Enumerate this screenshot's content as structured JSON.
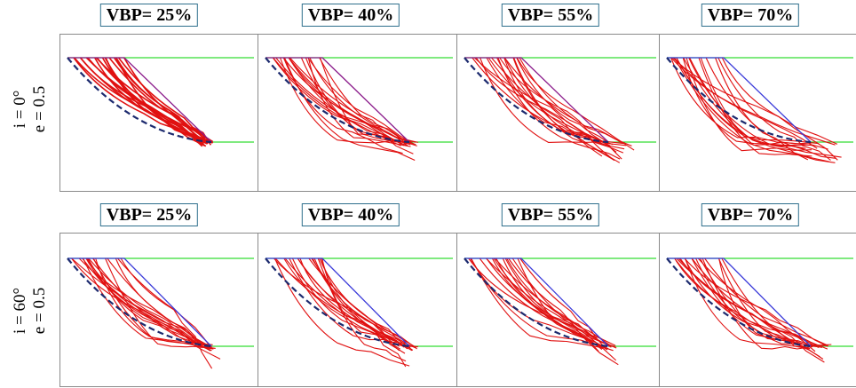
{
  "rows": [
    {
      "label_line1": "i = 0°",
      "label_line2": "e = 0.5",
      "panels": [
        {
          "title": "VBP= 25%",
          "spread": 0.35,
          "escape": 0.0,
          "boundary_color": "#8a1a8a",
          "seed": 11
        },
        {
          "title": "VBP= 40%",
          "spread": 0.55,
          "escape": 0.25,
          "boundary_color": "#8a1a8a",
          "seed": 23
        },
        {
          "title": "VBP= 55%",
          "spread": 0.85,
          "escape": 0.55,
          "boundary_color": "#8a1a8a",
          "seed": 37
        },
        {
          "title": "VBP= 70%",
          "spread": 1.0,
          "escape": 0.75,
          "boundary_color": "#3b3bd9",
          "seed": 51
        }
      ]
    },
    {
      "label_line1": "i = 60°",
      "label_line2": "e = 0.5",
      "panels": [
        {
          "title": "VBP= 25%",
          "spread": 0.55,
          "escape": 0.2,
          "boundary_color": "#3b3bd9",
          "seed": 61
        },
        {
          "title": "VBP= 40%",
          "spread": 0.6,
          "escape": 0.2,
          "boundary_color": "#3b3bd9",
          "seed": 73
        },
        {
          "title": "VBP= 55%",
          "spread": 0.65,
          "escape": 0.15,
          "boundary_color": "#3b3bd9",
          "seed": 89
        },
        {
          "title": "VBP= 70%",
          "spread": 0.75,
          "escape": 0.45,
          "boundary_color": "#3b3bd9",
          "seed": 97
        }
      ]
    }
  ],
  "colors": {
    "failure_surface": "#e01010",
    "critical_surface": "#1c2a6e",
    "ground_line": "#33dd33",
    "frame": "#8a8a8a",
    "title_border": "#2e6f8c"
  }
}
